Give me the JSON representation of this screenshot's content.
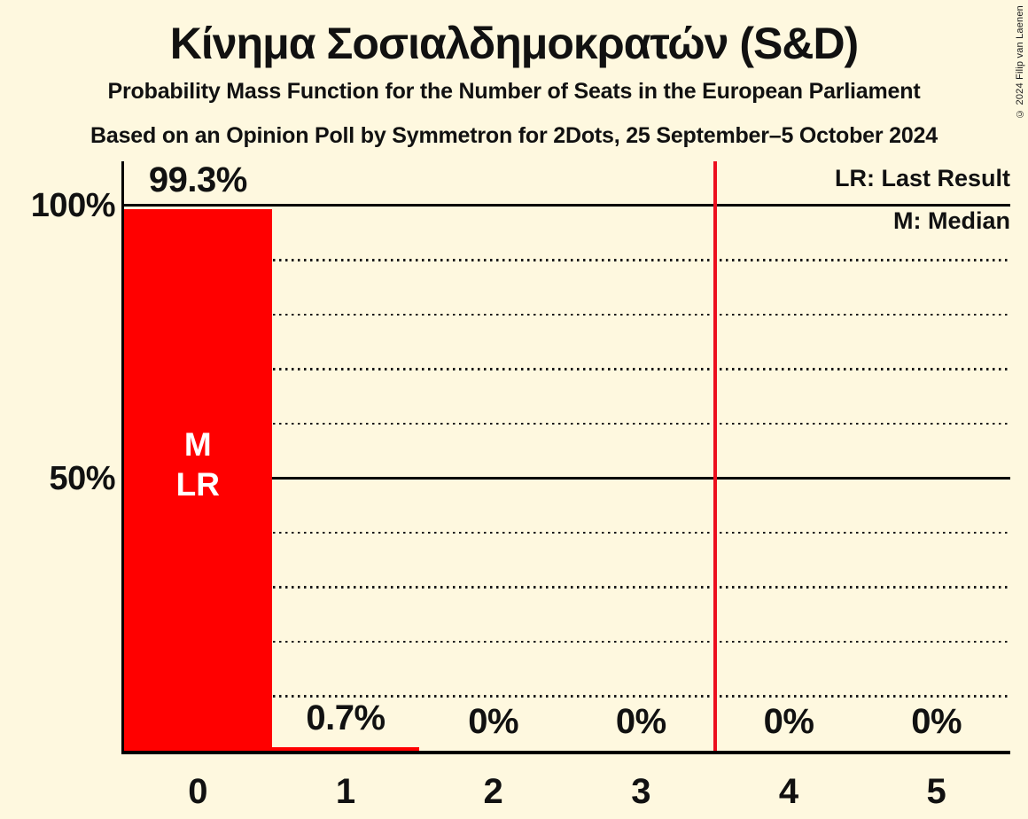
{
  "header": {
    "title": "Κίνημα Σοσιαλδημοκρατών (S&D)",
    "subtitle_line1": "Probability Mass Function for the Number of Seats in the European Parliament",
    "subtitle_line2": "Based on an Opinion Poll by Symmetron for 2Dots, 25 September–5 October 2024"
  },
  "copyright": "© 2024 Filip van Laenen",
  "legend": {
    "last_result": "LR: Last Result",
    "median": "M: Median"
  },
  "colors": {
    "background": "#fef8df",
    "bar": "#ff0000",
    "bar_label_text": "#ffffff",
    "threshold_line": "#ec0f1e",
    "grid": "#191919",
    "text": "#111111"
  },
  "chart_data": {
    "type": "bar",
    "title": "Κίνημα Σοσιαλδημοκρατών (S&D)",
    "categories": [
      "0",
      "1",
      "2",
      "3",
      "4",
      "5"
    ],
    "values": [
      99.3,
      0.7,
      0,
      0,
      0,
      0
    ],
    "value_labels": [
      "99.3%",
      "0.7%",
      "0%",
      "0%",
      "0%",
      "0%"
    ],
    "ylim": [
      0,
      108
    ],
    "yticks": [
      {
        "value": 100,
        "label": "100%"
      },
      {
        "value": 50,
        "label": "50%"
      }
    ],
    "gridlines": [
      {
        "pct": 10,
        "style": "dotted"
      },
      {
        "pct": 20,
        "style": "dotted"
      },
      {
        "pct": 30,
        "style": "dotted"
      },
      {
        "pct": 40,
        "style": "dotted"
      },
      {
        "pct": 50,
        "style": "solid"
      },
      {
        "pct": 60,
        "style": "dotted"
      },
      {
        "pct": 70,
        "style": "dotted"
      },
      {
        "pct": 80,
        "style": "dotted"
      },
      {
        "pct": 90,
        "style": "dotted"
      },
      {
        "pct": 100,
        "style": "solid"
      }
    ],
    "bar_annotations": [
      {
        "bar_index": 0,
        "lines": [
          "M",
          "LR"
        ]
      }
    ],
    "threshold_line": {
      "x": 3.5
    },
    "legend_position": "top-right",
    "grid": true
  }
}
